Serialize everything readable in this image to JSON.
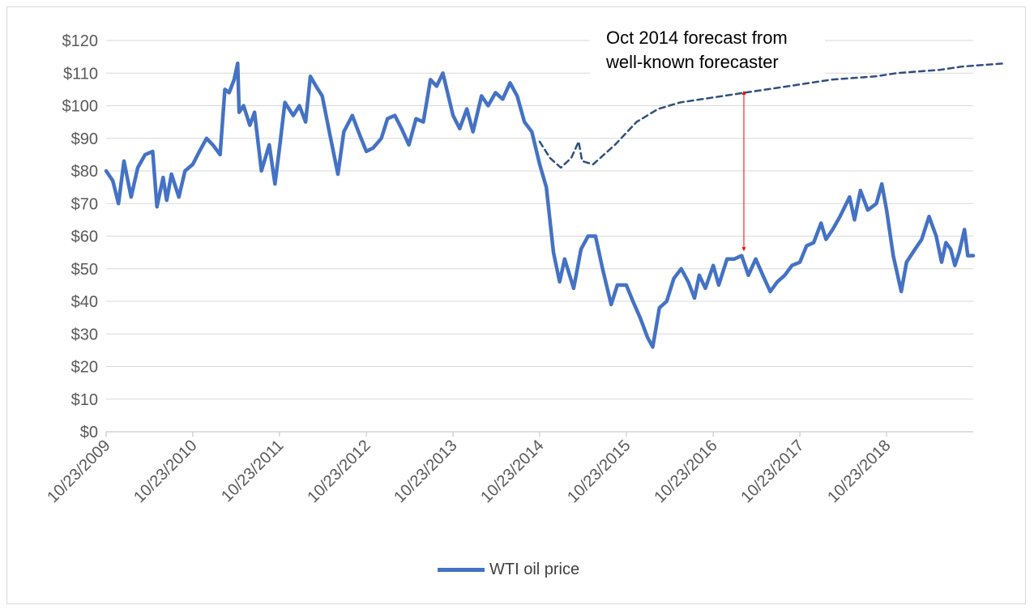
{
  "chart_data": {
    "type": "line",
    "title": "",
    "xlabel": "",
    "ylabel": "",
    "x_range": [
      "2009-10-23",
      "2019-10-23"
    ],
    "ylim": [
      0,
      120
    ],
    "y_ticks": [
      "$0",
      "$10",
      "$20",
      "$30",
      "$40",
      "$50",
      "$60",
      "$70",
      "$80",
      "$90",
      "$100",
      "$110",
      "$120"
    ],
    "x_ticks": [
      {
        "date": "2009-10-23",
        "label": "10/23/2009"
      },
      {
        "date": "2010-10-23",
        "label": "10/23/2010"
      },
      {
        "date": "2011-10-23",
        "label": "10/23/2011"
      },
      {
        "date": "2012-10-23",
        "label": "10/23/2012"
      },
      {
        "date": "2013-10-23",
        "label": "10/23/2013"
      },
      {
        "date": "2014-10-23",
        "label": "10/23/2014"
      },
      {
        "date": "2015-10-23",
        "label": "10/23/2015"
      },
      {
        "date": "2016-10-23",
        "label": "10/23/2016"
      },
      {
        "date": "2017-10-23",
        "label": "10/23/2017"
      },
      {
        "date": "2018-10-23",
        "label": "10/23/2018"
      }
    ],
    "grid": true,
    "legend_position": "bottom",
    "series": [
      {
        "name": "WTI oil price",
        "color": "#4472c4",
        "style": "solid",
        "points": [
          [
            "2009-10-23",
            80
          ],
          [
            "2009-11-20",
            77
          ],
          [
            "2009-12-14",
            70
          ],
          [
            "2010-01-06",
            83
          ],
          [
            "2010-02-05",
            72
          ],
          [
            "2010-03-05",
            81
          ],
          [
            "2010-04-05",
            85
          ],
          [
            "2010-05-07",
            86
          ],
          [
            "2010-05-25",
            69
          ],
          [
            "2010-06-20",
            78
          ],
          [
            "2010-07-05",
            71
          ],
          [
            "2010-07-25",
            79
          ],
          [
            "2010-08-25",
            72
          ],
          [
            "2010-09-20",
            80
          ],
          [
            "2010-10-23",
            82
          ],
          [
            "2010-11-20",
            86
          ],
          [
            "2010-12-20",
            90
          ],
          [
            "2011-01-15",
            88
          ],
          [
            "2011-02-15",
            85
          ],
          [
            "2011-03-07",
            105
          ],
          [
            "2011-03-25",
            104
          ],
          [
            "2011-04-15",
            108
          ],
          [
            "2011-04-30",
            113
          ],
          [
            "2011-05-06",
            98
          ],
          [
            "2011-05-25",
            100
          ],
          [
            "2011-06-20",
            94
          ],
          [
            "2011-07-10",
            98
          ],
          [
            "2011-08-08",
            80
          ],
          [
            "2011-09-10",
            88
          ],
          [
            "2011-10-04",
            76
          ],
          [
            "2011-10-23",
            87
          ],
          [
            "2011-11-15",
            101
          ],
          [
            "2011-12-20",
            97
          ],
          [
            "2012-01-15",
            100
          ],
          [
            "2012-02-10",
            95
          ],
          [
            "2012-03-01",
            109
          ],
          [
            "2012-03-25",
            106
          ],
          [
            "2012-04-20",
            103
          ],
          [
            "2012-05-20",
            92
          ],
          [
            "2012-06-25",
            79
          ],
          [
            "2012-07-20",
            92
          ],
          [
            "2012-08-25",
            97
          ],
          [
            "2012-09-20",
            92
          ],
          [
            "2012-10-23",
            86
          ],
          [
            "2012-11-20",
            87
          ],
          [
            "2012-12-25",
            90
          ],
          [
            "2013-01-20",
            96
          ],
          [
            "2013-02-20",
            97
          ],
          [
            "2013-03-20",
            93
          ],
          [
            "2013-04-20",
            88
          ],
          [
            "2013-05-20",
            96
          ],
          [
            "2013-06-20",
            95
          ],
          [
            "2013-07-20",
            108
          ],
          [
            "2013-08-15",
            106
          ],
          [
            "2013-09-10",
            110
          ],
          [
            "2013-10-23",
            97
          ],
          [
            "2013-11-20",
            93
          ],
          [
            "2013-12-20",
            99
          ],
          [
            "2014-01-15",
            92
          ],
          [
            "2014-02-20",
            103
          ],
          [
            "2014-03-20",
            100
          ],
          [
            "2014-04-20",
            104
          ],
          [
            "2014-05-20",
            102
          ],
          [
            "2014-06-20",
            107
          ],
          [
            "2014-07-20",
            103
          ],
          [
            "2014-08-20",
            95
          ],
          [
            "2014-09-20",
            92
          ],
          [
            "2014-10-23",
            82
          ],
          [
            "2014-11-20",
            75
          ],
          [
            "2014-12-20",
            55
          ],
          [
            "2015-01-15",
            46
          ],
          [
            "2015-02-05",
            53
          ],
          [
            "2015-03-15",
            44
          ],
          [
            "2015-04-15",
            56
          ],
          [
            "2015-05-15",
            60
          ],
          [
            "2015-06-15",
            60
          ],
          [
            "2015-07-15",
            50
          ],
          [
            "2015-08-20",
            39
          ],
          [
            "2015-09-15",
            45
          ],
          [
            "2015-10-23",
            45
          ],
          [
            "2015-11-20",
            40
          ],
          [
            "2015-12-20",
            35
          ],
          [
            "2016-01-20",
            29
          ],
          [
            "2016-02-11",
            26
          ],
          [
            "2016-03-10",
            38
          ],
          [
            "2016-04-10",
            40
          ],
          [
            "2016-05-10",
            47
          ],
          [
            "2016-06-10",
            50
          ],
          [
            "2016-07-10",
            46
          ],
          [
            "2016-08-05",
            41
          ],
          [
            "2016-08-25",
            48
          ],
          [
            "2016-09-20",
            44
          ],
          [
            "2016-10-23",
            51
          ],
          [
            "2016-11-15",
            45
          ],
          [
            "2016-12-20",
            53
          ],
          [
            "2017-01-20",
            53
          ],
          [
            "2017-02-20",
            54
          ],
          [
            "2017-03-20",
            48
          ],
          [
            "2017-04-20",
            53
          ],
          [
            "2017-05-20",
            48
          ],
          [
            "2017-06-20",
            43
          ],
          [
            "2017-07-20",
            46
          ],
          [
            "2017-08-20",
            48
          ],
          [
            "2017-09-20",
            51
          ],
          [
            "2017-10-23",
            52
          ],
          [
            "2017-11-20",
            57
          ],
          [
            "2017-12-20",
            58
          ],
          [
            "2018-01-20",
            64
          ],
          [
            "2018-02-10",
            59
          ],
          [
            "2018-03-10",
            62
          ],
          [
            "2018-04-10",
            66
          ],
          [
            "2018-05-20",
            72
          ],
          [
            "2018-06-10",
            65
          ],
          [
            "2018-07-05",
            74
          ],
          [
            "2018-08-05",
            68
          ],
          [
            "2018-09-10",
            70
          ],
          [
            "2018-10-03",
            76
          ],
          [
            "2018-10-23",
            68
          ],
          [
            "2018-11-20",
            54
          ],
          [
            "2018-12-24",
            43
          ],
          [
            "2019-01-15",
            52
          ],
          [
            "2019-02-20",
            56
          ],
          [
            "2019-03-20",
            59
          ],
          [
            "2019-04-20",
            66
          ],
          [
            "2019-05-20",
            60
          ],
          [
            "2019-06-12",
            52
          ],
          [
            "2019-06-30",
            58
          ],
          [
            "2019-07-20",
            56
          ],
          [
            "2019-08-07",
            51
          ],
          [
            "2019-08-25",
            55
          ],
          [
            "2019-09-16",
            62
          ],
          [
            "2019-09-30",
            54
          ],
          [
            "2019-10-23",
            54
          ]
        ]
      },
      {
        "name": "",
        "color": "#2f4f7f",
        "style": "dashed",
        "points": [
          [
            "2014-10-23",
            89
          ],
          [
            "2014-12-05",
            84
          ],
          [
            "2015-01-20",
            81
          ],
          [
            "2015-03-05",
            84
          ],
          [
            "2015-04-05",
            89
          ],
          [
            "2015-04-20",
            83
          ],
          [
            "2015-06-05",
            82
          ],
          [
            "2015-09-05",
            88
          ],
          [
            "2015-12-05",
            95
          ],
          [
            "2016-03-05",
            99
          ],
          [
            "2016-06-05",
            101
          ],
          [
            "2016-09-05",
            102
          ],
          [
            "2016-12-05",
            103
          ],
          [
            "2017-03-05",
            104
          ],
          [
            "2017-06-05",
            105
          ],
          [
            "2017-09-05",
            106
          ],
          [
            "2017-12-05",
            107
          ],
          [
            "2018-03-05",
            108
          ],
          [
            "2018-06-05",
            108.5
          ],
          [
            "2018-09-05",
            109
          ],
          [
            "2018-12-05",
            110
          ],
          [
            "2019-03-05",
            110.5
          ],
          [
            "2019-06-05",
            111
          ],
          [
            "2019-09-05",
            112
          ],
          [
            "2019-12-05",
            112.5
          ],
          [
            "2020-03-05",
            113
          ]
        ]
      }
    ],
    "annotation_arrow": {
      "date": "2017-03-01",
      "from": 104,
      "to": 56,
      "color": "#ff0000"
    }
  },
  "annotation": {
    "line1": "Oct 2014 forecast from",
    "line2": "well-known forecaster"
  },
  "legend": {
    "label": "WTI oil price",
    "color": "#4472c4"
  }
}
